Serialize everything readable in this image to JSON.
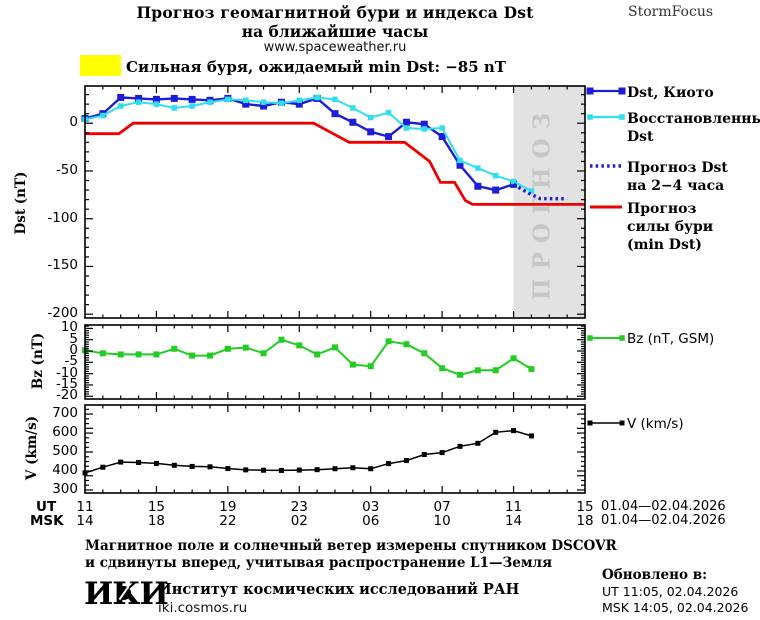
{
  "header": {
    "title_line1": "Прогноз геомагнитной бури и индекса Dst",
    "title_line2": "на ближайшие часы",
    "site": "www.spaceweather.ru",
    "brand": "StormFocus"
  },
  "warning": {
    "text": "Сильная буря, ожидаемый min Dst: −85 nT",
    "swatch_color": "#ffff00"
  },
  "colors": {
    "dst_kyoto": "#1c1cd9",
    "dst_restored": "#2fdfee",
    "dst_forecast": "#1c1cd9",
    "storm_forecast": "#ee0000",
    "bz": "#22cc22",
    "v": "#000000",
    "forecast_region_fill": "#e2e2e2",
    "forecast_region_text": "#c6c6c6",
    "warning_yellow": "#ffff00"
  },
  "axes": {
    "ut_label": "UT",
    "msk_label": "MSK",
    "ut_ticks": [
      "11",
      "15",
      "19",
      "23",
      "03",
      "07",
      "11",
      "15"
    ],
    "msk_ticks": [
      "14",
      "18",
      "22",
      "02",
      "06",
      "10",
      "14",
      "18"
    ],
    "date_range_ut": "01.04—02.04.2026",
    "date_range_msk": "01.04—02.04.2026"
  },
  "legend": {
    "main": [
      {
        "lines": [
          "Dst, Киото"
        ],
        "color": "#1c1cd9",
        "style": "solid",
        "marker": true
      },
      {
        "lines": [
          "Восстановленный",
          "Dst"
        ],
        "color": "#2fdfee",
        "style": "solid",
        "marker": true
      },
      {
        "lines": [
          "Прогноз Dst",
          "на 2−4 часа"
        ],
        "color": "#1c1cd9",
        "style": "dotted",
        "marker": false
      },
      {
        "lines": [
          "Прогноз",
          "силы бури",
          "(min Dst)"
        ],
        "color": "#ee0000",
        "style": "solid",
        "marker": false
      }
    ],
    "bz_label": "Bz (nT, GSM)",
    "v_label": "V (km/s)"
  },
  "footer": {
    "note_line1": "Магнитное поле и солнечный ветер измерены спутником DSCOVR",
    "note_line2": "и сдвинуты вперед, учитывая распространение L1—Земля",
    "logo_left": "И",
    "logo_mid": "К",
    "logo_right": "И",
    "institute": "Институт космических исследований РАН",
    "institute_site": "iki.cosmos.ru",
    "updated_label": "Обновлено в:",
    "updated_ut": "UT   11:05, 02.04.2026",
    "updated_msk": "MSK 14:05, 02.04.2026"
  },
  "chart_data": [
    {
      "type": "line",
      "id": "dst",
      "ylabel": "Dst (nT)",
      "ylim": [
        -204,
        39
      ],
      "yticks": [
        0,
        -50,
        -100,
        -150,
        -200
      ],
      "y_minor_step": 10,
      "xlim_hours": [
        0,
        28
      ],
      "x_major_step": 4,
      "x_minor_step": 1,
      "x_start_ut": "11:00 01.04.2026",
      "forecast_region": {
        "x_start": 24,
        "x_end": 28,
        "label": "ПРОГНОЗ"
      },
      "series": [
        {
          "name": "Dst, Киото",
          "color": "#1c1cd9",
          "style": "solid",
          "marker": "square",
          "x": [
            0,
            1,
            2,
            3,
            4,
            5,
            6,
            7,
            8,
            9,
            10,
            11,
            12,
            13,
            14,
            15,
            16,
            17,
            18,
            19,
            20,
            21,
            22,
            23,
            24
          ],
          "values": [
            5,
            10,
            27,
            26,
            25,
            26,
            25,
            24,
            26,
            20,
            18,
            22,
            20,
            26,
            10,
            1,
            -9,
            -14,
            1,
            -1,
            -14,
            -44,
            -66,
            -70,
            -64
          ]
        },
        {
          "name": "Восстановленный Dst",
          "color": "#2fdfee",
          "style": "solid",
          "marker": "square",
          "x": [
            0,
            1,
            2,
            3,
            4,
            5,
            6,
            7,
            8,
            9,
            10,
            11,
            12,
            13,
            14,
            15,
            16,
            17,
            18,
            19,
            20,
            21,
            22,
            23,
            24,
            25
          ],
          "values": [
            4,
            8,
            18,
            22,
            20,
            16,
            18,
            22,
            25,
            24,
            22,
            21,
            24,
            27,
            25,
            16,
            6,
            11,
            -5,
            -6,
            -5,
            -39,
            -47,
            -55,
            -61,
            -71
          ]
        },
        {
          "name": "Прогноз Dst на 2−4 часа",
          "color": "#1c1cd9",
          "style": "dotted",
          "marker": "none",
          "x": [
            24,
            24.8,
            25.5,
            27
          ],
          "values": [
            -64,
            -73,
            -79,
            -79
          ]
        },
        {
          "name": "Прогноз силы бури (min Dst)",
          "color": "#ee0000",
          "style": "solid",
          "marker": "none",
          "x": [
            0,
            1.9,
            2.7,
            12.8,
            14.8,
            17.9,
            19.3,
            19.9,
            20.7,
            21.3,
            21.7,
            28
          ],
          "values": [
            -11,
            -11,
            0,
            0,
            -20,
            -20,
            -40,
            -62,
            -62,
            -81,
            -85,
            -85
          ]
        }
      ]
    },
    {
      "type": "line",
      "id": "bz",
      "ylabel": "Bz (nT)",
      "ylim": [
        -21.2,
        11.5
      ],
      "yticks": [
        10,
        5,
        0,
        -5,
        -10,
        -15,
        -20
      ],
      "y_minor_step": 1,
      "xlim_hours": [
        0,
        28
      ],
      "x_major_step": 4,
      "x_minor_step": 1,
      "series": [
        {
          "name": "Bz (nT, GSM)",
          "color": "#22cc22",
          "style": "solid",
          "marker": "square",
          "x": [
            0,
            1,
            2,
            3,
            4,
            5,
            6,
            7,
            8,
            9,
            10,
            11,
            12,
            13,
            14,
            15,
            16,
            17,
            18,
            19,
            20,
            21,
            22,
            23,
            24,
            25
          ],
          "values": [
            0.3,
            -1,
            -1.5,
            -1.5,
            -1.5,
            1,
            -2,
            -2,
            1,
            1.5,
            -1,
            5,
            2.5,
            -1.5,
            1.6,
            -6,
            -6.7,
            4.3,
            3,
            -1,
            -7.6,
            -10.5,
            -8.5,
            -8.5,
            -3.2,
            -8
          ]
        }
      ]
    },
    {
      "type": "line",
      "id": "v",
      "ylabel": "V (km/s)",
      "ylim": [
        284,
        748
      ],
      "yticks": [
        700,
        600,
        500,
        400,
        300
      ],
      "y_minor_step": 25,
      "xlim_hours": [
        0,
        28
      ],
      "x_major_step": 4,
      "x_minor_step": 1,
      "series": [
        {
          "name": "V (km/s)",
          "color": "#000000",
          "style": "solid",
          "marker": "square",
          "x": [
            0,
            1,
            2,
            3,
            4,
            5,
            6,
            7,
            8,
            9,
            10,
            11,
            12,
            13,
            14,
            15,
            16,
            17,
            18,
            19,
            20,
            21,
            22,
            23,
            24,
            25
          ],
          "values": [
            390,
            420,
            447,
            445,
            440,
            430,
            424,
            422,
            413,
            406,
            404,
            403,
            405,
            407,
            412,
            417,
            412,
            439,
            455,
            487,
            497,
            530,
            546,
            604,
            613,
            585
          ]
        }
      ]
    }
  ]
}
